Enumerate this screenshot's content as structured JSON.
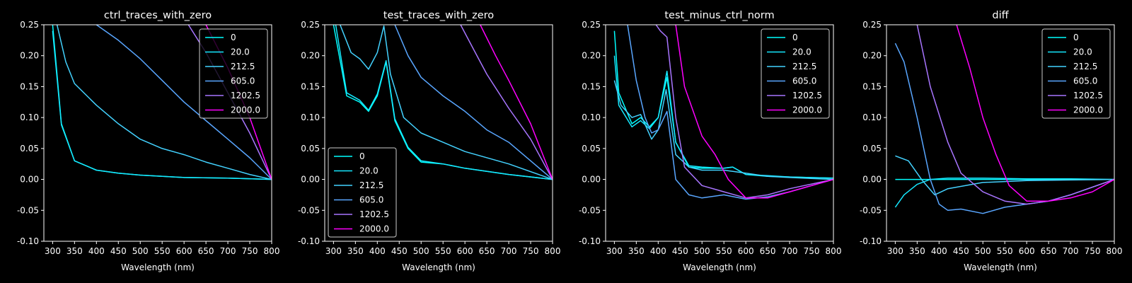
{
  "chart_data": [
    {
      "type": "line",
      "title": "ctrl_traces_with_zero",
      "xlabel": "Wavelength (nm)",
      "ylabel": "",
      "xlim": [
        280,
        800
      ],
      "ylim": [
        -0.1,
        0.25
      ],
      "legend": "top-right",
      "series": [
        {
          "name": "0",
          "color": "#00ffff",
          "x": [
            300,
            320,
            350,
            400,
            450,
            500,
            600,
            700,
            800
          ],
          "y": [
            0.25,
            0.09,
            0.03,
            0.015,
            0.01,
            0.007,
            0.003,
            0.002,
            0.0
          ]
        },
        {
          "name": "20.0",
          "color": "#15e9ff",
          "x": [
            300,
            320,
            350,
            400,
            450,
            500,
            600,
            700,
            800
          ],
          "y": [
            0.24,
            0.088,
            0.03,
            0.015,
            0.01,
            0.007,
            0.003,
            0.002,
            0.0
          ]
        },
        {
          "name": "212.5",
          "color": "#43d2ff",
          "x": [
            310,
            330,
            350,
            400,
            450,
            500,
            550,
            600,
            650,
            700,
            750,
            800
          ],
          "y": [
            0.25,
            0.19,
            0.155,
            0.12,
            0.09,
            0.065,
            0.05,
            0.04,
            0.028,
            0.018,
            0.008,
            0.0
          ]
        },
        {
          "name": "605.0",
          "color": "#59a6ff",
          "x": [
            400,
            450,
            500,
            550,
            600,
            650,
            700,
            750,
            800
          ],
          "y": [
            0.25,
            0.225,
            0.195,
            0.16,
            0.125,
            0.095,
            0.065,
            0.035,
            0.0
          ]
        },
        {
          "name": "1202.5",
          "color": "#a875ff",
          "x": [
            610,
            650,
            700,
            750,
            800
          ],
          "y": [
            0.25,
            0.205,
            0.14,
            0.075,
            0.0
          ]
        },
        {
          "name": "2000.0",
          "color": "#ff00ff",
          "x": [
            650,
            700,
            750,
            800
          ],
          "y": [
            0.25,
            0.18,
            0.1,
            0.0
          ]
        }
      ]
    },
    {
      "type": "line",
      "title": "test_traces_with_zero",
      "xlabel": "Wavelength (nm)",
      "ylabel": "",
      "xlim": [
        280,
        800
      ],
      "ylim": [
        -0.1,
        0.25
      ],
      "legend": "lower-left",
      "series": [
        {
          "name": "0",
          "color": "#00ffff",
          "x": [
            300,
            330,
            360,
            380,
            400,
            420,
            440,
            470,
            500,
            550,
            600,
            700,
            800
          ],
          "y": [
            0.25,
            0.135,
            0.125,
            0.11,
            0.135,
            0.19,
            0.095,
            0.05,
            0.028,
            0.025,
            0.018,
            0.008,
            0.0
          ]
        },
        {
          "name": "20.0",
          "color": "#15e9ff",
          "x": [
            305,
            330,
            360,
            380,
            400,
            420,
            440,
            470,
            500,
            550,
            600,
            700,
            800
          ],
          "y": [
            0.25,
            0.14,
            0.128,
            0.112,
            0.138,
            0.192,
            0.098,
            0.052,
            0.03,
            0.025,
            0.018,
            0.008,
            0.0
          ]
        },
        {
          "name": "212.5",
          "color": "#43d2ff",
          "x": [
            315,
            340,
            360,
            380,
            400,
            415,
            430,
            460,
            500,
            550,
            600,
            700,
            800
          ],
          "y": [
            0.25,
            0.205,
            0.195,
            0.178,
            0.205,
            0.248,
            0.17,
            0.1,
            0.075,
            0.06,
            0.045,
            0.025,
            0.0
          ]
        },
        {
          "name": "605.0",
          "color": "#59a6ff",
          "x": [
            440,
            470,
            500,
            550,
            600,
            650,
            700,
            750,
            800
          ],
          "y": [
            0.25,
            0.2,
            0.165,
            0.135,
            0.11,
            0.08,
            0.06,
            0.03,
            0.0
          ]
        },
        {
          "name": "1202.5",
          "color": "#a875ff",
          "x": [
            590,
            620,
            650,
            700,
            750,
            800
          ],
          "y": [
            0.25,
            0.21,
            0.17,
            0.115,
            0.065,
            0.0
          ]
        },
        {
          "name": "2000.0",
          "color": "#ff00ff",
          "x": [
            635,
            670,
            700,
            750,
            800
          ],
          "y": [
            0.25,
            0.2,
            0.16,
            0.09,
            0.0
          ]
        }
      ]
    },
    {
      "type": "line",
      "title": "test_minus_ctrl_norm",
      "xlabel": "Wavelength (nm)",
      "ylabel": "",
      "xlim": [
        280,
        800
      ],
      "ylim": [
        -0.1,
        0.25
      ],
      "legend": "top-right",
      "series": [
        {
          "name": "0",
          "color": "#00ffff",
          "x": [
            300,
            310,
            340,
            360,
            380,
            400,
            420,
            440,
            470,
            500,
            550,
            570,
            600,
            650,
            700,
            800
          ],
          "y": [
            0.24,
            0.14,
            0.09,
            0.1,
            0.085,
            0.1,
            0.165,
            0.06,
            0.02,
            0.018,
            0.018,
            0.02,
            0.008,
            0.005,
            0.004,
            0.002
          ]
        },
        {
          "name": "20.0",
          "color": "#15e9ff",
          "x": [
            300,
            310,
            340,
            360,
            380,
            400,
            420,
            440,
            470,
            500,
            550,
            570,
            600,
            650,
            700,
            800
          ],
          "y": [
            0.2,
            0.12,
            0.085,
            0.095,
            0.082,
            0.1,
            0.175,
            0.06,
            0.022,
            0.02,
            0.018,
            0.02,
            0.008,
            0.006,
            0.004,
            0.002
          ]
        },
        {
          "name": "212.5",
          "color": "#43d2ff",
          "x": [
            300,
            315,
            340,
            360,
            385,
            400,
            418,
            440,
            470,
            500,
            550,
            600,
            650,
            700,
            800
          ],
          "y": [
            0.16,
            0.12,
            0.1,
            0.105,
            0.065,
            0.08,
            0.145,
            0.04,
            0.02,
            0.015,
            0.015,
            0.01,
            0.005,
            0.003,
            0.0
          ]
        },
        {
          "name": "605.0",
          "color": "#59a6ff",
          "x": [
            330,
            350,
            370,
            385,
            400,
            420,
            440,
            470,
            500,
            550,
            600,
            650,
            700,
            800
          ],
          "y": [
            0.25,
            0.16,
            0.1,
            0.075,
            0.08,
            0.11,
            0.0,
            -0.025,
            -0.03,
            -0.025,
            -0.032,
            -0.028,
            -0.02,
            0.0
          ]
        },
        {
          "name": "1202.5",
          "color": "#a875ff",
          "x": [
            395,
            405,
            420,
            440,
            460,
            500,
            550,
            600,
            650,
            700,
            800
          ],
          "y": [
            0.25,
            0.24,
            0.23,
            0.1,
            0.02,
            -0.01,
            -0.02,
            -0.03,
            -0.025,
            -0.015,
            0.0
          ]
        },
        {
          "name": "2000.0",
          "color": "#ff00ff",
          "x": [
            440,
            460,
            500,
            530,
            560,
            600,
            650,
            700,
            800
          ],
          "y": [
            0.25,
            0.15,
            0.07,
            0.04,
            0.0,
            -0.03,
            -0.03,
            -0.02,
            0.0
          ]
        }
      ]
    },
    {
      "type": "line",
      "title": "diff",
      "xlabel": "Wavelength (nm)",
      "ylabel": "",
      "xlim": [
        280,
        800
      ],
      "ylim": [
        -0.1,
        0.25
      ],
      "legend": "top-right",
      "series": [
        {
          "name": "0",
          "color": "#00ffff",
          "x": [
            300,
            500,
            700,
            800
          ],
          "y": [
            0.0,
            0.0,
            0.0,
            0.0
          ]
        },
        {
          "name": "20.0",
          "color": "#15e9ff",
          "x": [
            300,
            320,
            350,
            380,
            420,
            500,
            600,
            700,
            800
          ],
          "y": [
            -0.045,
            -0.025,
            -0.008,
            0.0,
            0.002,
            0.002,
            0.001,
            0.001,
            0.0
          ]
        },
        {
          "name": "212.5",
          "color": "#43d2ff",
          "x": [
            300,
            330,
            360,
            390,
            420,
            500,
            600,
            700,
            800
          ],
          "y": [
            0.038,
            0.03,
            0.0,
            -0.025,
            -0.015,
            -0.005,
            -0.002,
            -0.001,
            0.0
          ]
        },
        {
          "name": "605.0",
          "color": "#59a6ff",
          "x": [
            300,
            320,
            350,
            380,
            400,
            420,
            450,
            500,
            550,
            600,
            650,
            700,
            800
          ],
          "y": [
            0.22,
            0.19,
            0.1,
            0.0,
            -0.04,
            -0.05,
            -0.048,
            -0.055,
            -0.045,
            -0.04,
            -0.035,
            -0.025,
            0.0
          ]
        },
        {
          "name": "1202.5",
          "color": "#a875ff",
          "x": [
            350,
            380,
            420,
            450,
            500,
            550,
            600,
            650,
            700,
            800
          ],
          "y": [
            0.25,
            0.15,
            0.06,
            0.01,
            -0.02,
            -0.035,
            -0.04,
            -0.035,
            -0.025,
            0.0
          ]
        },
        {
          "name": "2000.0",
          "color": "#ff00ff",
          "x": [
            440,
            470,
            500,
            530,
            560,
            600,
            650,
            700,
            750,
            800
          ],
          "y": [
            0.25,
            0.18,
            0.1,
            0.04,
            -0.01,
            -0.035,
            -0.035,
            -0.03,
            -0.02,
            0.0
          ]
        }
      ]
    }
  ]
}
